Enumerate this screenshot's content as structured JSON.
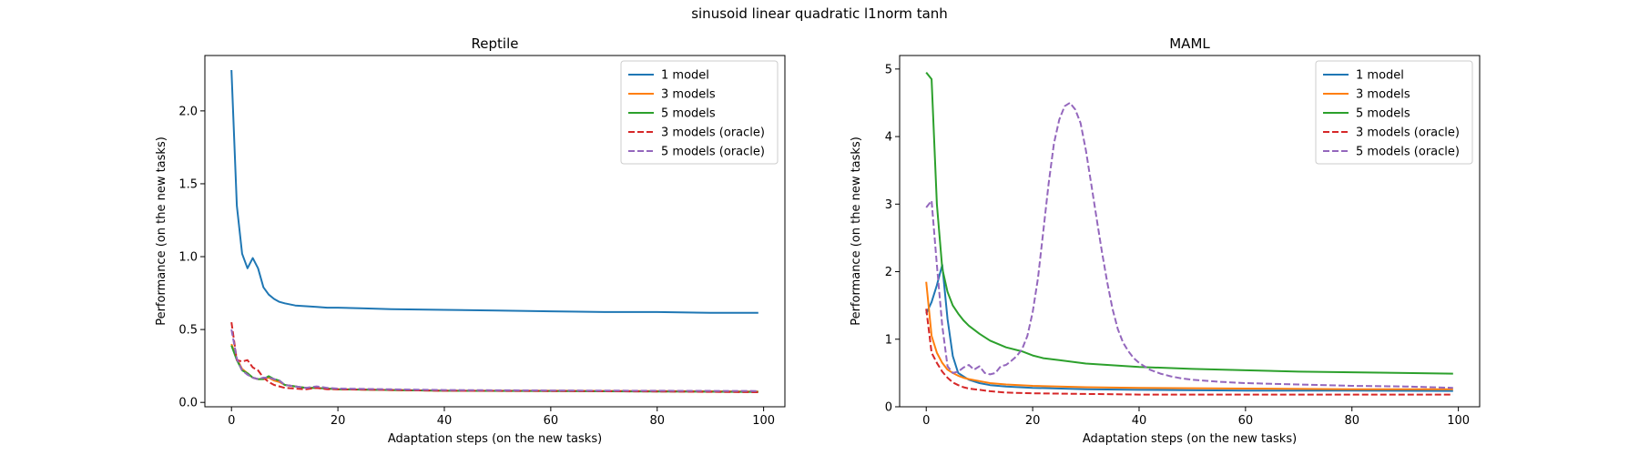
{
  "figure": {
    "title": "sinusoid linear quadratic l1norm tanh"
  },
  "chart_data": [
    {
      "type": "line",
      "title": "Reptile",
      "xlabel": "Adaptation steps (on the new tasks)",
      "ylabel": "Performance (on the new tasks)",
      "xlim": [
        -5,
        104
      ],
      "ylim": [
        -0.03,
        2.38
      ],
      "xticks": [
        0,
        20,
        40,
        60,
        80,
        100
      ],
      "yticks": [
        0.0,
        0.5,
        1.0,
        1.5,
        2.0
      ],
      "ytick_labels": [
        "0.0",
        "0.5",
        "1.0",
        "1.5",
        "2.0"
      ],
      "legend_position": "top-right",
      "grid": false,
      "series": [
        {
          "name": "1 model",
          "color": "#1f77b4",
          "dash": "solid",
          "x": [
            0,
            1,
            2,
            3,
            4,
            5,
            6,
            7,
            8,
            9,
            10,
            12,
            14,
            16,
            18,
            20,
            25,
            30,
            40,
            50,
            60,
            70,
            80,
            90,
            99
          ],
          "y": [
            2.28,
            1.35,
            1.02,
            0.92,
            0.99,
            0.92,
            0.79,
            0.74,
            0.71,
            0.69,
            0.68,
            0.665,
            0.66,
            0.655,
            0.65,
            0.65,
            0.645,
            0.64,
            0.635,
            0.63,
            0.625,
            0.62,
            0.62,
            0.615,
            0.615
          ]
        },
        {
          "name": "3 models",
          "color": "#ff7f0e",
          "dash": "solid",
          "x": [
            0,
            1,
            2,
            3,
            4,
            5,
            6,
            7,
            8,
            9,
            10,
            12,
            14,
            16,
            18,
            20,
            30,
            40,
            60,
            80,
            99
          ],
          "y": [
            0.4,
            0.3,
            0.23,
            0.2,
            0.17,
            0.16,
            0.16,
            0.17,
            0.15,
            0.14,
            0.12,
            0.11,
            0.1,
            0.1,
            0.095,
            0.09,
            0.085,
            0.08,
            0.08,
            0.078,
            0.075
          ]
        },
        {
          "name": "5 models",
          "color": "#2ca02c",
          "dash": "solid",
          "x": [
            0,
            1,
            2,
            3,
            4,
            5,
            6,
            7,
            8,
            9,
            10,
            12,
            14,
            16,
            18,
            20,
            30,
            40,
            60,
            80,
            99
          ],
          "y": [
            0.39,
            0.29,
            0.22,
            0.2,
            0.17,
            0.16,
            0.16,
            0.18,
            0.16,
            0.15,
            0.12,
            0.11,
            0.1,
            0.1,
            0.095,
            0.09,
            0.085,
            0.08,
            0.078,
            0.075,
            0.072
          ]
        },
        {
          "name": "3 models (oracle)",
          "color": "#d62728",
          "dash": "dashed",
          "x": [
            0,
            1,
            2,
            3,
            4,
            5,
            6,
            7,
            8,
            9,
            10,
            12,
            14,
            16,
            18,
            20,
            30,
            40,
            60,
            80,
            99
          ],
          "y": [
            0.55,
            0.29,
            0.28,
            0.29,
            0.24,
            0.22,
            0.17,
            0.14,
            0.12,
            0.11,
            0.1,
            0.095,
            0.09,
            0.1,
            0.09,
            0.09,
            0.085,
            0.08,
            0.078,
            0.075,
            0.07
          ]
        },
        {
          "name": "5 models (oracle)",
          "color": "#9467bd",
          "dash": "dashed",
          "x": [
            0,
            1,
            2,
            3,
            4,
            5,
            6,
            7,
            8,
            9,
            10,
            12,
            14,
            16,
            18,
            20,
            30,
            40,
            60,
            80,
            99
          ],
          "y": [
            0.5,
            0.3,
            0.22,
            0.19,
            0.17,
            0.16,
            0.17,
            0.17,
            0.16,
            0.15,
            0.12,
            0.11,
            0.1,
            0.11,
            0.1,
            0.095,
            0.09,
            0.085,
            0.082,
            0.08,
            0.078
          ]
        }
      ]
    },
    {
      "type": "line",
      "title": "MAML",
      "xlabel": "Adaptation steps (on the new tasks)",
      "ylabel": "Performance (on the new tasks)",
      "xlim": [
        -5,
        104
      ],
      "ylim": [
        0,
        5.2
      ],
      "xticks": [
        0,
        20,
        40,
        60,
        80,
        100
      ],
      "yticks": [
        0,
        1,
        2,
        3,
        4,
        5
      ],
      "ytick_labels": [
        "0",
        "1",
        "2",
        "3",
        "4",
        "5"
      ],
      "legend_position": "top-right",
      "grid": false,
      "series": [
        {
          "name": "1 model",
          "color": "#1f77b4",
          "dash": "solid",
          "x": [
            0,
            1,
            2,
            3,
            4,
            5,
            6,
            7,
            8,
            10,
            12,
            15,
            20,
            30,
            40,
            60,
            80,
            99
          ],
          "y": [
            1.38,
            1.55,
            1.8,
            2.1,
            1.3,
            0.75,
            0.5,
            0.45,
            0.4,
            0.35,
            0.32,
            0.3,
            0.28,
            0.26,
            0.25,
            0.24,
            0.24,
            0.235
          ]
        },
        {
          "name": "3 models",
          "color": "#ff7f0e",
          "dash": "solid",
          "x": [
            0,
            1,
            2,
            3,
            4,
            5,
            6,
            7,
            8,
            10,
            12,
            15,
            20,
            30,
            40,
            60,
            80,
            99
          ],
          "y": [
            1.85,
            1.05,
            0.8,
            0.65,
            0.55,
            0.5,
            0.46,
            0.43,
            0.41,
            0.38,
            0.35,
            0.33,
            0.31,
            0.29,
            0.28,
            0.27,
            0.26,
            0.26
          ]
        },
        {
          "name": "5 models",
          "color": "#2ca02c",
          "dash": "solid",
          "x": [
            0,
            1,
            2,
            3,
            4,
            5,
            6,
            7,
            8,
            10,
            12,
            15,
            18,
            20,
            22,
            25,
            30,
            40,
            50,
            60,
            70,
            80,
            90,
            99
          ],
          "y": [
            4.95,
            4.85,
            3.0,
            2.05,
            1.7,
            1.5,
            1.38,
            1.28,
            1.2,
            1.08,
            0.98,
            0.88,
            0.82,
            0.76,
            0.72,
            0.69,
            0.64,
            0.59,
            0.56,
            0.54,
            0.52,
            0.51,
            0.5,
            0.49
          ]
        },
        {
          "name": "3 models (oracle)",
          "color": "#d62728",
          "dash": "dashed",
          "x": [
            0,
            1,
            2,
            3,
            4,
            5,
            6,
            7,
            8,
            10,
            12,
            15,
            20,
            30,
            40,
            60,
            80,
            99
          ],
          "y": [
            1.45,
            0.8,
            0.65,
            0.52,
            0.43,
            0.36,
            0.32,
            0.29,
            0.27,
            0.25,
            0.23,
            0.21,
            0.2,
            0.19,
            0.18,
            0.18,
            0.18,
            0.18
          ]
        },
        {
          "name": "5 models (oracle)",
          "color": "#9467bd",
          "dash": "dashed",
          "x": [
            0,
            1,
            2,
            3,
            4,
            5,
            6,
            7,
            8,
            9,
            10,
            11,
            12,
            13,
            14,
            15,
            16,
            17,
            18,
            19,
            20,
            21,
            22,
            23,
            24,
            25,
            26,
            27,
            28,
            29,
            30,
            31,
            32,
            33,
            34,
            35,
            36,
            37,
            38,
            39,
            40,
            42,
            44,
            46,
            48,
            50,
            55,
            60,
            70,
            80,
            90,
            99
          ],
          "y": [
            2.95,
            3.05,
            2.1,
            1.2,
            0.6,
            0.5,
            0.52,
            0.58,
            0.62,
            0.55,
            0.6,
            0.5,
            0.48,
            0.5,
            0.6,
            0.62,
            0.68,
            0.75,
            0.85,
            1.05,
            1.4,
            1.9,
            2.6,
            3.3,
            3.9,
            4.25,
            4.45,
            4.5,
            4.4,
            4.2,
            3.8,
            3.3,
            2.8,
            2.3,
            1.85,
            1.45,
            1.15,
            0.95,
            0.82,
            0.72,
            0.65,
            0.55,
            0.49,
            0.45,
            0.42,
            0.4,
            0.37,
            0.35,
            0.33,
            0.31,
            0.3,
            0.28
          ]
        }
      ]
    }
  ]
}
